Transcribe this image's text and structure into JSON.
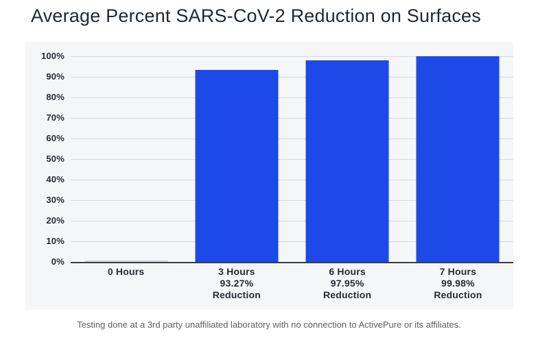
{
  "page": {
    "title": "Average Percent SARS-CoV-2 Reduction on Surfaces",
    "footnote": "Testing done at a 3rd party unaffiliated laboratory with no connection to ActivePure or its affiliates."
  },
  "chart_data": {
    "type": "bar",
    "title": "Average Percent SARS-CoV-2 Reduction on Surfaces",
    "categories": [
      "0 Hours",
      "3 Hours",
      "6 Hours",
      "7 Hours"
    ],
    "values": [
      0,
      93.27,
      97.95,
      99.98
    ],
    "category_labels": [
      [
        "0 Hours"
      ],
      [
        "3 Hours",
        "93.27%",
        "Reduction"
      ],
      [
        "6 Hours",
        "97.95%",
        "Reduction"
      ],
      [
        "7 Hours",
        "99.98%",
        "Reduction"
      ]
    ],
    "y_ticks": [
      "100%",
      "90%",
      "80%",
      "70%",
      "60%",
      "50%",
      "40%",
      "30%",
      "20%",
      "10%",
      "0%"
    ],
    "ylim": [
      0,
      100
    ],
    "y_tick_step": 10,
    "grid": true,
    "legend": "none",
    "xlabel": "",
    "ylabel": "",
    "colors": {
      "bar": "#1d49e8",
      "zero_bar": "#ccd3e4",
      "panel_background": "#f5f6f8",
      "gridline": "#d6d9de",
      "axis_line": "#383d44",
      "tick_label": "#252a31",
      "title": "#1f2733",
      "footnote": "#5b5f66"
    }
  }
}
